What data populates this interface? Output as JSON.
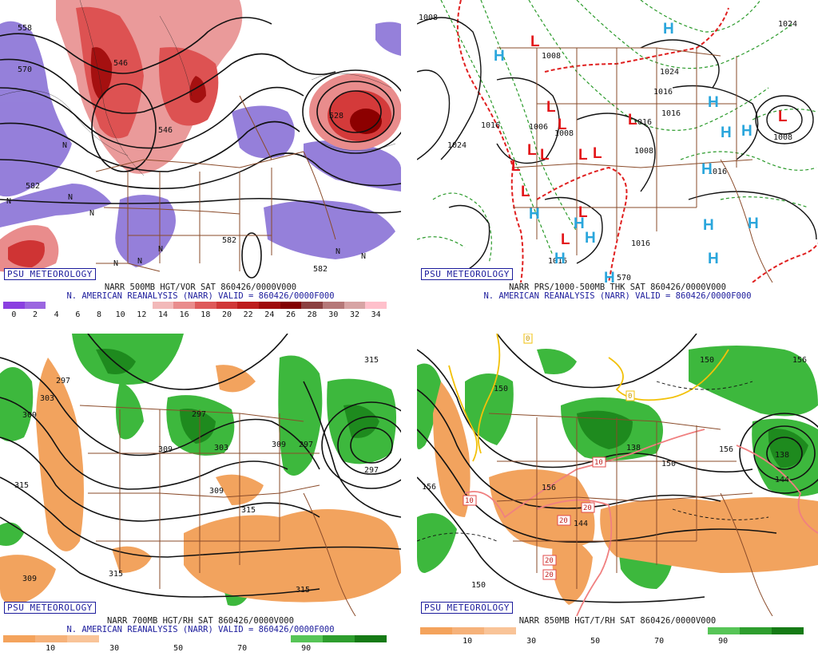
{
  "panels": [
    {
      "badge": "PSU METEOROLOGY",
      "title_line": "NARR 500MB HGT/VOR SAT 860426/0000V000",
      "valid_line": "N. AMERICAN REANALYSIS (NARR) VALID = 860426/0000F000",
      "contour_labels": [
        "558",
        "570",
        "546",
        "546",
        "528",
        "582",
        "582",
        "582"
      ],
      "letters": [
        "N",
        "N",
        "N",
        "N",
        "N",
        "N",
        "N",
        "N",
        "N"
      ],
      "scale": {
        "colors": [
          "#8a3fe0",
          "#9b66e0",
          "#ffffff",
          "#ffffff",
          "#ffffff",
          "#ffffff",
          "#ffffff",
          "#f2b9b9",
          "#e98c8c",
          "#de5a5a",
          "#d03838",
          "#bd1d1d",
          "#9f0c0c",
          "#820000",
          "#8b4040",
          "#b57878",
          "#d7a4a4",
          "#ffc0cb"
        ],
        "ticks": [
          "0",
          "2",
          "4",
          "6",
          "8",
          "10",
          "12",
          "14",
          "16",
          "18",
          "20",
          "22",
          "24",
          "26",
          "28",
          "30",
          "32",
          "34"
        ]
      }
    },
    {
      "badge": "PSU METEOROLOGY",
      "title_line": "NARR PRS/1000-500MB THK SAT 860426/0000V000",
      "valid_line": "N. AMERICAN REANALYSIS (NARR) VALID = 860426/0000F000",
      "contour_labels": [
        "1008",
        "1016",
        "1024",
        "1008",
        "1024",
        "1016",
        "1008",
        "1006",
        "1008",
        "1016",
        "1016",
        "1016",
        "1016",
        "1008",
        "1024",
        "1016",
        "570"
      ],
      "highs": [
        "H",
        "H",
        "H",
        "H",
        "H",
        "H",
        "H",
        "H",
        "H",
        "H",
        "H",
        "H",
        "H",
        "H"
      ],
      "lows": [
        "L",
        "L",
        "L",
        "L",
        "L",
        "L",
        "L",
        "L",
        "L",
        "L",
        "L",
        "L",
        "L"
      ]
    },
    {
      "badge": "PSU METEOROLOGY",
      "title_line": "NARR 700MB HGT/RH SAT 860426/0000V000",
      "valid_line": "N. AMERICAN REANALYSIS (NARR) VALID = 860426/0000F000",
      "contour_labels": [
        "297",
        "303",
        "309",
        "315",
        "297",
        "309",
        "303",
        "309",
        "309",
        "315",
        "297",
        "315",
        "309",
        "315",
        "315",
        "297"
      ],
      "scale": {
        "colors": [
          "#f4a35c",
          "#f6b27a",
          "#f9c498",
          "#ffffff",
          "#ffffff",
          "#ffffff",
          "#ffffff",
          "#ffffff",
          "#ffffff",
          "#57c557",
          "#2e9e2e",
          "#157a15"
        ],
        "ticks": [
          "10",
          "30",
          "50",
          "70",
          "90"
        ]
      }
    },
    {
      "badge": "PSU METEOROLOGY",
      "title_line": "NARR 850MB HGT/T/RH SAT 860426/0000V000",
      "valid_line": "",
      "contour_labels": [
        "156",
        "150",
        "156",
        "150",
        "156",
        "138",
        "144",
        "150",
        "156",
        "144",
        "138",
        "150"
      ],
      "temp_labels": [
        "0",
        "0",
        "10",
        "10",
        "20",
        "20",
        "20",
        "20"
      ],
      "scale": {
        "colors": [
          "#f4a35c",
          "#f6b27a",
          "#f9c498",
          "#ffffff",
          "#ffffff",
          "#ffffff",
          "#ffffff",
          "#ffffff",
          "#ffffff",
          "#57c557",
          "#2e9e2e",
          "#157a15"
        ],
        "ticks": [
          "10",
          "30",
          "50",
          "70",
          "90"
        ]
      }
    }
  ]
}
